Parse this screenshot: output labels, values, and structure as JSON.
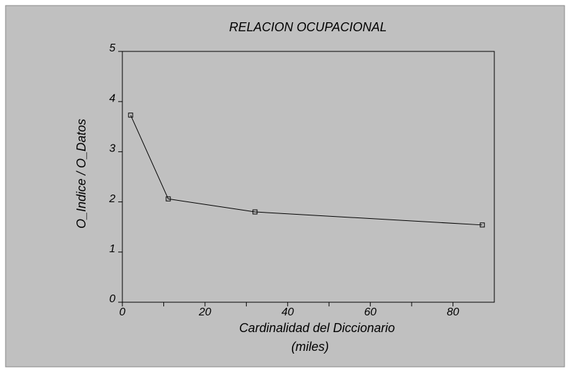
{
  "chart_data": {
    "type": "line",
    "title": "RELACION OCUPACIONAL",
    "x_label": [
      "Cardinalidad del Diccionario",
      "(miles)"
    ],
    "y_label": "O_Indice / O_Datos",
    "x": [
      2.0,
      11.1,
      32.1,
      87.1
    ],
    "series": [
      {
        "color": "#000000",
        "values": [
          3.73,
          2.06,
          1.8,
          1.54
        ]
      }
    ],
    "xlim": [
      0,
      90
    ],
    "xticks": [
      0,
      20,
      40,
      60,
      80
    ],
    "x_minor_ticks": [
      10,
      30,
      50,
      70
    ],
    "ylim": [
      0,
      5
    ],
    "yticks": [
      0,
      1,
      2,
      3,
      4,
      5
    ],
    "background": "#c0c0c0"
  }
}
